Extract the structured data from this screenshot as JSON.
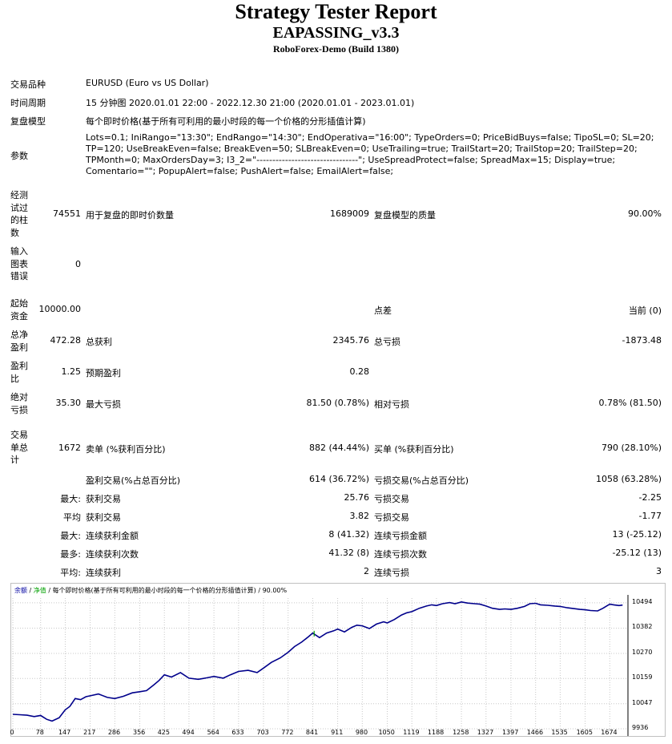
{
  "header": {
    "title": "Strategy Tester Report",
    "ea_name": "EAPASSING_v3.3",
    "server": "RoboForex-Demo (Build 1380)"
  },
  "info": {
    "symbol_label": "交易品种",
    "symbol_value": "EURUSD (Euro vs US Dollar)",
    "period_label": "时间周期",
    "period_value": "15 分钟图 2020.01.01 22:00 - 2022.12.30 21:00 (2020.01.01 - 2023.01.01)",
    "model_label": "复盘模型",
    "model_value": "每个即时价格(基于所有可利用的最小时段的每一个价格的分形插值计算)",
    "params_label": "参数",
    "params_value": "Lots=0.1; IniRango=\"13:30\"; EndRango=\"14:30\"; EndOperativa=\"16:00\"; TypeOrders=0; PriceBidBuys=false; TipoSL=0; SL=20; TP=120; UseBreakEven=false; BreakEven=50; SLBreakEven=0; UseTrailing=true; TrailStart=20; TrailStop=20; TrailStep=20; TPMonth=0; MaxOrdersDay=3; I3_2=\"--------------------------------\"; UseSpreadProtect=false; SpreadMax=15; Display=true; Comentario=\"\"; PopupAlert=false; PushAlert=false; EmailAlert=false;"
  },
  "stats": {
    "bars_label": "经测试过的柱数",
    "bars_value": "74551",
    "ticks_label": "用于复盘的即时价数量",
    "ticks_value": "1689009",
    "quality_label": "复盘模型的质量",
    "quality_value": "90.00%",
    "errors_label": "输入图表错误",
    "errors_value": "0",
    "deposit_label": "起始资金",
    "deposit_value": "10000.00",
    "spread_label": "点差",
    "spread_value": "当前 (0)",
    "net_label": "总净盈利",
    "net_value": "472.28",
    "gross_profit_label": "总获利",
    "gross_profit_value": "2345.76",
    "gross_loss_label": "总亏损",
    "gross_loss_value": "-1873.48",
    "pf_label": "盈利比",
    "pf_value": "1.25",
    "payoff_label": "预期盈利",
    "payoff_value": "0.28",
    "abs_dd_label": "绝对亏损",
    "abs_dd_value": "35.30",
    "max_dd_label": "最大亏损",
    "max_dd_value": "81.50 (0.78%)",
    "rel_dd_label": "相对亏损",
    "rel_dd_value": "0.78% (81.50)",
    "trades_label": "交易单总计",
    "trades_value": "1672",
    "short_label": "卖单 (%获利百分比)",
    "short_value": "882 (44.44%)",
    "long_label": "买单 (%获利百分比)",
    "long_value": "790 (28.10%)",
    "profit_trades_label": "盈利交易(%占总百分比)",
    "profit_trades_value": "614 (36.72%)",
    "loss_trades_label": "亏损交易(%占总百分比)",
    "loss_trades_value": "1058 (63.28%)",
    "largest_label": "最大:",
    "largest_profit_label": "获利交易",
    "largest_profit_value": "25.76",
    "largest_loss_label": "亏损交易",
    "largest_loss_value": "-2.25",
    "average_label": "平均",
    "average_profit_label": "获利交易",
    "average_profit_value": "3.82",
    "average_loss_label": "亏损交易",
    "average_loss_value": "-1.77",
    "max_cons_label": "最大:",
    "max_cons_wins_label": "连续获利金额",
    "max_cons_wins_value": "8 (41.32)",
    "max_cons_losses_label": "连续亏损金额",
    "max_cons_losses_value": "13 (-25.12)",
    "maximal_label": "最多:",
    "maximal_wins_label": "连续获利次数",
    "maximal_wins_value": "41.32 (8)",
    "maximal_losses_label": "连续亏损次数",
    "maximal_losses_value": "-25.12 (13)",
    "avg_cons_label": "平均:",
    "avg_cons_wins_label": "连续获利",
    "avg_cons_wins_value": "2",
    "avg_cons_losses_label": "连续亏损",
    "avg_cons_losses_value": "3"
  },
  "chart_data": {
    "type": "line",
    "legend_balance": "余额",
    "legend_equity": "净值",
    "legend_model": "每个即时价格(基于所有可利用的最小时段的每一个价格的分形插值计算)",
    "legend_quality": "90.00%",
    "x_ticks": [
      "0",
      "78",
      "147",
      "217",
      "286",
      "356",
      "425",
      "494",
      "564",
      "633",
      "703",
      "772",
      "841",
      "911",
      "980",
      "1050",
      "1119",
      "1188",
      "1258",
      "1327",
      "1397",
      "1466",
      "1535",
      "1605",
      "1674"
    ],
    "y_ticks": [
      "10494",
      "10382",
      "10270",
      "10159",
      "10047",
      "9936"
    ],
    "xlim": [
      0,
      1725
    ],
    "ylim": [
      9936,
      10515
    ],
    "balance_color": "#00008b",
    "equity_color": "#00a000",
    "series": [
      {
        "x": [
          0,
          20,
          40,
          60,
          78,
          95,
          110,
          130,
          147,
          160,
          175,
          190,
          205,
          217,
          240,
          265,
          286,
          310,
          335,
          356,
          375,
          395,
          410,
          425,
          445,
          470,
          494,
          520,
          545,
          564,
          590,
          610,
          633,
          660,
          685,
          703,
          725,
          750,
          772,
          790,
          810,
          830,
          841,
          860,
          880,
          900,
          911,
          930,
          950,
          965,
          980,
          1000,
          1020,
          1040,
          1050,
          1070,
          1090,
          1105,
          1119,
          1140,
          1160,
          1175,
          1188,
          1205,
          1225,
          1240,
          1258,
          1275,
          1295,
          1310,
          1327,
          1345,
          1365,
          1380,
          1397,
          1415,
          1435,
          1450,
          1466,
          1480,
          1500,
          1520,
          1535,
          1555,
          1575,
          1590,
          1605,
          1620,
          1640,
          1655,
          1665,
          1674,
          1685,
          1700,
          1710
        ],
        "y": [
          10000,
          9998,
          9996,
          9990,
          9995,
          9978,
          9970,
          9985,
          10020,
          10035,
          10070,
          10065,
          10078,
          10082,
          10090,
          10075,
          10070,
          10080,
          10095,
          10100,
          10105,
          10130,
          10150,
          10175,
          10165,
          10185,
          10160,
          10155,
          10162,
          10168,
          10160,
          10175,
          10190,
          10195,
          10185,
          10205,
          10230,
          10250,
          10275,
          10300,
          10320,
          10345,
          10360,
          10340,
          10360,
          10370,
          10378,
          10365,
          10385,
          10395,
          10392,
          10380,
          10400,
          10410,
          10405,
          10420,
          10440,
          10450,
          10455,
          10470,
          10480,
          10485,
          10482,
          10490,
          10495,
          10490,
          10498,
          10493,
          10490,
          10488,
          10480,
          10470,
          10465,
          10467,
          10465,
          10470,
          10478,
          10490,
          10492,
          10485,
          10483,
          10480,
          10478,
          10472,
          10468,
          10465,
          10463,
          10460,
          10458,
          10470,
          10480,
          10488,
          10485,
          10482,
          10484
        ]
      }
    ]
  }
}
